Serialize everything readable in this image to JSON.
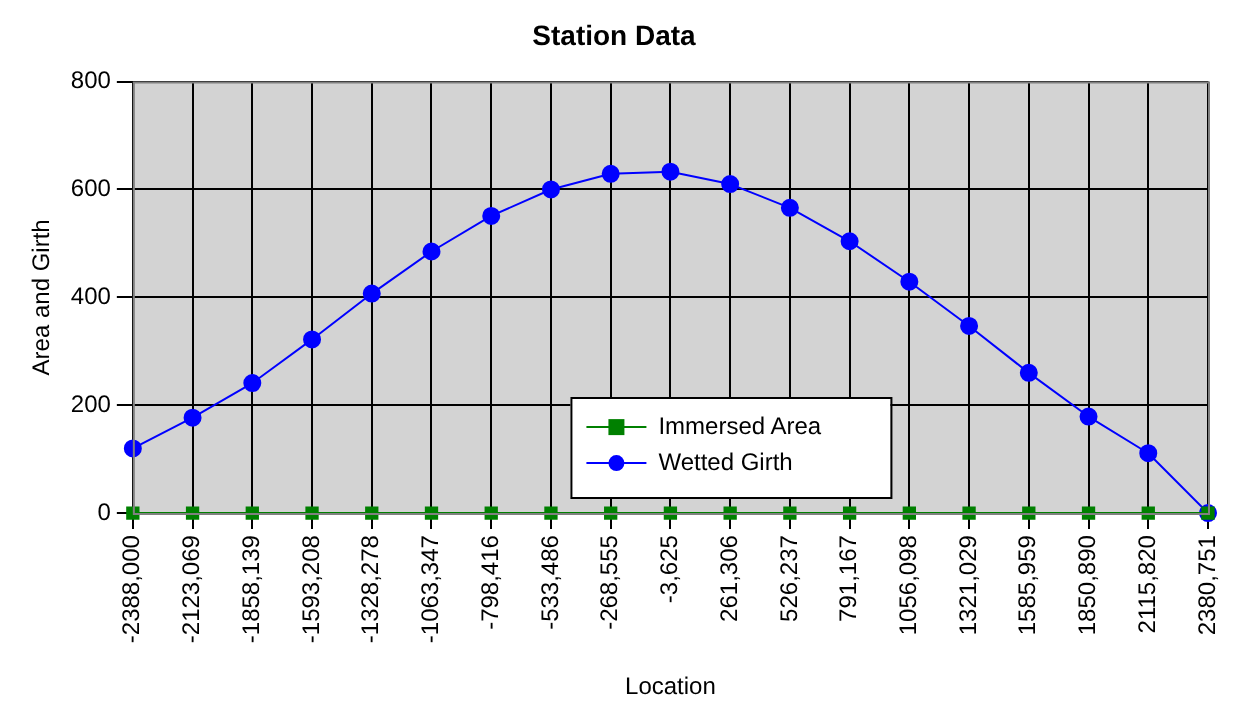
{
  "chart_data": {
    "type": "line",
    "title": "Station Data",
    "xlabel": "Location",
    "ylabel": "Area and Girth",
    "categories": [
      "-2388,000",
      "-2123,069",
      "-1858,139",
      "-1593,208",
      "-1328,278",
      "-1063,347",
      "-798,416",
      "-533,486",
      "-268,555",
      "-3,625",
      "261,306",
      "526,237",
      "791,167",
      "1056,098",
      "1321,029",
      "1585,959",
      "1850,890",
      "2115,820",
      "2380,751"
    ],
    "series": [
      {
        "name": "Immersed Area",
        "color": "#008000",
        "marker": "square",
        "values": [
          0,
          0,
          0,
          0,
          0,
          0,
          0,
          0,
          0,
          0,
          0,
          0,
          0,
          0,
          0,
          0,
          0,
          0,
          0
        ]
      },
      {
        "name": "Wetted Girth",
        "color": "#0000ff",
        "marker": "circle",
        "values": [
          120,
          177,
          241,
          322,
          407,
          485,
          551,
          600,
          629,
          633,
          610,
          566,
          504,
          429,
          347,
          260,
          179,
          111,
          0
        ]
      }
    ],
    "ylim": [
      0,
      800
    ],
    "yticks": [
      0,
      200,
      400,
      600,
      800
    ],
    "grid": true,
    "legend": "bottom"
  }
}
